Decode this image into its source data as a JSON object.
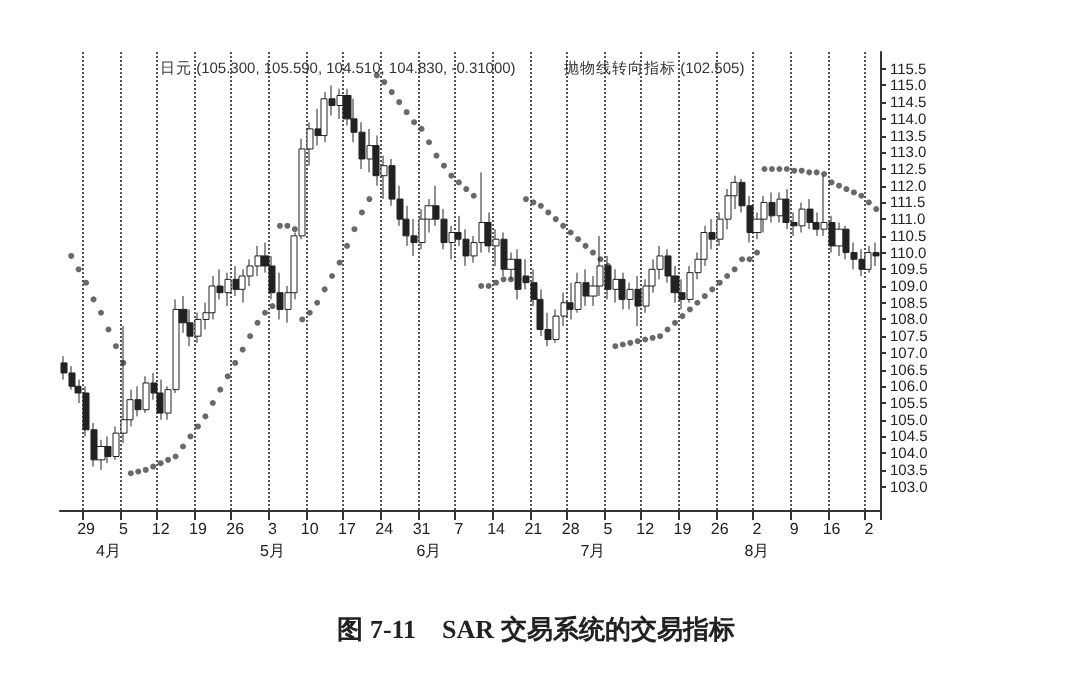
{
  "chart_data": {
    "type": "candlestick",
    "title": "图 7-11　SAR 交易系统的交易指标",
    "annotations": [
      "日元 (105.300, 105.590, 104.510, 104.830, -0.31000)",
      "抛物线转向指标 (102.505)"
    ],
    "categories": [
      null,
      null,
      null,
      "29",
      null,
      null,
      "\n4月",
      null,
      "5",
      null,
      null,
      null,
      null,
      "12",
      null,
      null,
      null,
      null,
      "19",
      null,
      null,
      null,
      null,
      "26",
      null,
      null,
      null,
      null,
      "3\n5月",
      null,
      null,
      null,
      null,
      "10",
      null,
      null,
      null,
      null,
      "17",
      null,
      null,
      null,
      null,
      "24",
      null,
      null,
      null,
      null,
      "31",
      "\n6月",
      null,
      null,
      null,
      "7",
      null,
      null,
      null,
      null,
      "14",
      null,
      null,
      null,
      null,
      "21",
      null,
      null,
      null,
      null,
      "28",
      null,
      null,
      "\n7月",
      null,
      "5",
      null,
      null,
      null,
      null,
      "12",
      null,
      null,
      null,
      null,
      "19",
      null,
      null,
      null,
      null,
      "26",
      null,
      null,
      null,
      null,
      "2\n8月",
      null,
      null,
      null,
      null,
      "9",
      null,
      null,
      null,
      null,
      "16",
      null,
      null,
      null,
      null,
      "2",
      null
    ],
    "color": "#222222",
    "ohlc": [
      [
        106.7,
        106.9,
        106.2,
        106.4
      ],
      [
        106.4,
        106.6,
        105.9,
        106.0
      ],
      [
        106.0,
        106.2,
        105.5,
        105.8
      ],
      [
        105.8,
        106.0,
        104.5,
        104.7
      ],
      [
        104.7,
        104.9,
        103.6,
        103.8
      ],
      [
        103.8,
        104.4,
        103.5,
        104.2
      ],
      [
        104.2,
        104.5,
        103.7,
        103.9
      ],
      [
        103.9,
        104.8,
        103.8,
        104.6
      ],
      [
        104.6,
        107.8,
        104.3,
        105.0
      ],
      [
        105.0,
        105.9,
        104.8,
        105.6
      ],
      [
        105.6,
        106.0,
        105.1,
        105.3
      ],
      [
        105.3,
        106.3,
        105.2,
        106.1
      ],
      [
        106.1,
        106.4,
        105.6,
        105.8
      ],
      [
        105.8,
        106.2,
        105.0,
        105.2
      ],
      [
        105.2,
        106.0,
        105.0,
        105.9
      ],
      [
        105.9,
        108.6,
        105.8,
        108.3
      ],
      [
        108.3,
        108.7,
        107.6,
        107.9
      ],
      [
        107.9,
        108.3,
        107.2,
        107.5
      ],
      [
        107.5,
        108.2,
        107.3,
        108.0
      ],
      [
        108.0,
        108.5,
        107.7,
        108.2
      ],
      [
        108.2,
        109.3,
        108.0,
        109.0
      ],
      [
        109.0,
        109.5,
        108.6,
        108.8
      ],
      [
        108.8,
        109.4,
        108.4,
        109.2
      ],
      [
        109.2,
        109.6,
        108.7,
        108.9
      ],
      [
        108.9,
        109.5,
        108.5,
        109.3
      ],
      [
        109.3,
        109.8,
        109.0,
        109.6
      ],
      [
        109.6,
        110.2,
        109.3,
        109.9
      ],
      [
        109.9,
        110.3,
        109.4,
        109.6
      ],
      [
        109.6,
        109.9,
        108.6,
        108.8
      ],
      [
        108.8,
        109.4,
        108.0,
        108.3
      ],
      [
        108.3,
        109.0,
        107.9,
        108.8
      ],
      [
        108.8,
        110.6,
        108.6,
        110.5
      ],
      [
        110.5,
        113.4,
        110.4,
        113.1
      ],
      [
        113.1,
        113.9,
        112.6,
        113.7
      ],
      [
        113.7,
        114.3,
        113.2,
        113.5
      ],
      [
        113.5,
        114.8,
        113.3,
        114.6
      ],
      [
        114.6,
        115.0,
        114.1,
        114.4
      ],
      [
        114.4,
        114.9,
        114.0,
        114.7
      ],
      [
        114.7,
        114.9,
        113.8,
        114.0
      ],
      [
        114.0,
        114.6,
        113.3,
        113.6
      ],
      [
        113.6,
        113.9,
        112.5,
        112.8
      ],
      [
        112.8,
        113.7,
        112.4,
        113.2
      ],
      [
        113.2,
        113.5,
        112.0,
        112.3
      ],
      [
        112.3,
        112.9,
        111.6,
        112.6
      ],
      [
        112.6,
        112.8,
        111.4,
        111.6
      ],
      [
        111.6,
        112.0,
        110.8,
        111.0
      ],
      [
        111.0,
        111.4,
        110.2,
        110.5
      ],
      [
        110.5,
        111.0,
        109.9,
        110.3
      ],
      [
        110.3,
        111.3,
        110.1,
        111.0
      ],
      [
        111.0,
        111.6,
        110.6,
        111.4
      ],
      [
        111.4,
        112.0,
        110.8,
        111.0
      ],
      [
        111.0,
        111.3,
        110.1,
        110.3
      ],
      [
        110.3,
        110.8,
        109.8,
        110.6
      ],
      [
        110.6,
        111.1,
        110.2,
        110.4
      ],
      [
        110.4,
        110.7,
        109.6,
        109.9
      ],
      [
        109.9,
        110.5,
        109.7,
        110.3
      ],
      [
        110.3,
        112.4,
        110.0,
        110.9
      ],
      [
        110.9,
        111.2,
        110.0,
        110.2
      ],
      [
        110.2,
        110.7,
        109.6,
        110.4
      ],
      [
        110.4,
        110.6,
        109.3,
        109.5
      ],
      [
        109.5,
        110.0,
        109.2,
        109.8
      ],
      [
        109.8,
        110.1,
        108.6,
        108.9
      ],
      [
        109.3,
        109.8,
        108.9,
        109.1
      ],
      [
        109.1,
        109.5,
        108.4,
        108.6
      ],
      [
        108.6,
        108.9,
        107.5,
        107.7
      ],
      [
        107.7,
        108.2,
        107.2,
        107.4
      ],
      [
        107.4,
        108.3,
        107.3,
        108.1
      ],
      [
        108.1,
        108.8,
        107.8,
        108.5
      ],
      [
        108.5,
        109.1,
        108.0,
        108.3
      ],
      [
        108.3,
        109.4,
        108.2,
        109.1
      ],
      [
        109.1,
        109.5,
        108.4,
        108.7
      ],
      [
        108.7,
        109.3,
        108.4,
        109.0
      ],
      [
        109.0,
        110.5,
        108.7,
        109.6
      ],
      [
        109.6,
        109.9,
        108.6,
        108.9
      ],
      [
        108.9,
        109.5,
        108.5,
        109.2
      ],
      [
        109.2,
        109.4,
        108.3,
        108.6
      ],
      [
        108.6,
        109.1,
        108.3,
        108.9
      ],
      [
        108.9,
        109.3,
        107.8,
        108.4
      ],
      [
        108.4,
        109.2,
        108.2,
        109.0
      ],
      [
        109.0,
        109.8,
        108.8,
        109.5
      ],
      [
        109.5,
        110.2,
        109.2,
        109.9
      ],
      [
        109.9,
        110.1,
        109.1,
        109.3
      ],
      [
        109.3,
        109.6,
        108.5,
        108.8
      ],
      [
        108.8,
        109.2,
        108.3,
        108.6
      ],
      [
        108.6,
        109.6,
        108.5,
        109.4
      ],
      [
        109.4,
        110.0,
        109.2,
        109.8
      ],
      [
        109.8,
        110.8,
        109.6,
        110.6
      ],
      [
        110.6,
        111.0,
        110.1,
        110.4
      ],
      [
        110.4,
        111.2,
        110.2,
        111.0
      ],
      [
        111.0,
        111.9,
        110.7,
        111.7
      ],
      [
        111.7,
        112.3,
        111.3,
        112.1
      ],
      [
        112.1,
        112.2,
        111.2,
        111.4
      ],
      [
        111.4,
        111.7,
        110.3,
        110.6
      ],
      [
        110.6,
        111.2,
        110.4,
        111.0
      ],
      [
        111.0,
        111.7,
        110.6,
        111.5
      ],
      [
        111.5,
        111.8,
        110.9,
        111.1
      ],
      [
        111.1,
        111.8,
        110.9,
        111.6
      ],
      [
        111.6,
        111.9,
        110.7,
        110.9
      ],
      [
        110.9,
        111.2,
        110.5,
        110.8
      ],
      [
        110.8,
        111.5,
        110.6,
        111.3
      ],
      [
        111.3,
        111.6,
        110.7,
        110.9
      ],
      [
        110.9,
        111.2,
        110.5,
        110.7
      ],
      [
        110.7,
        112.3,
        110.5,
        110.9
      ],
      [
        110.9,
        111.1,
        110.0,
        110.2
      ],
      [
        110.2,
        110.9,
        109.9,
        110.7
      ],
      [
        110.7,
        110.8,
        109.8,
        110.0
      ],
      [
        110.0,
        110.3,
        109.5,
        109.8
      ],
      [
        109.8,
        110.1,
        109.3,
        109.5
      ],
      [
        109.5,
        110.2,
        109.4,
        110.0
      ],
      [
        110.0,
        110.3,
        109.6,
        109.9
      ]
    ],
    "series": [
      {
        "type": "scatter",
        "color": "#444444",
        "values": [
          null,
          109.9,
          109.5,
          109.1,
          108.6,
          108.2,
          107.7,
          107.2,
          106.7,
          103.4,
          103.45,
          103.5,
          103.6,
          103.7,
          103.8,
          103.9,
          104.2,
          104.5,
          104.8,
          105.1,
          105.5,
          105.9,
          106.3,
          106.7,
          107.1,
          107.5,
          107.9,
          108.2,
          108.4,
          110.8,
          110.8,
          110.7,
          108.0,
          108.2,
          108.5,
          108.9,
          109.3,
          109.7,
          110.2,
          110.7,
          111.2,
          111.6,
          115.3,
          115.1,
          114.8,
          114.5,
          114.2,
          113.9,
          113.7,
          113.3,
          112.9,
          112.6,
          112.3,
          112.1,
          111.9,
          111.7,
          109.0,
          109.0,
          109.1,
          109.2,
          109.2,
          109.2,
          111.6,
          111.5,
          111.4,
          111.2,
          111.0,
          110.8,
          110.6,
          110.4,
          110.2,
          110.0,
          109.8,
          109.6,
          107.2,
          107.25,
          107.3,
          107.35,
          107.4,
          107.45,
          107.5,
          107.7,
          107.9,
          108.1,
          108.3,
          108.5,
          108.7,
          108.9,
          109.1,
          109.3,
          109.5,
          109.8,
          109.8,
          110.0,
          112.5,
          112.5,
          112.5,
          112.5,
          112.45,
          112.45,
          112.4,
          112.4,
          112.35,
          112.1,
          112.0,
          111.9,
          111.8,
          111.7,
          111.5,
          111.3
        ]
      }
    ],
    "ylim": [
      102.3,
      116.0
    ],
    "yticks": [
      {
        "value": 103.0,
        "label": "103.0"
      },
      {
        "value": 103.5,
        "label": "103.5"
      },
      {
        "value": 104.0,
        "label": "104.0"
      },
      {
        "value": 104.5,
        "label": "104.5"
      },
      {
        "value": 105.0,
        "label": "105.0"
      },
      {
        "value": 105.5,
        "label": "105.5"
      },
      {
        "value": 106.0,
        "label": "106.0"
      },
      {
        "value": 106.5,
        "label": "106.5"
      },
      {
        "value": 107.0,
        "label": "107.0"
      },
      {
        "value": 107.5,
        "label": "107.5"
      },
      {
        "value": 108.0,
        "label": "108.0"
      },
      {
        "value": 108.5,
        "label": "108.5"
      },
      {
        "value": 109.0,
        "label": "109.0"
      },
      {
        "value": 109.5,
        "label": "109.5"
      },
      {
        "value": 110.0,
        "label": "110.0"
      },
      {
        "value": 110.5,
        "label": "110.5"
      },
      {
        "value": 111.0,
        "label": "111.0"
      },
      {
        "value": 111.5,
        "label": "111.5"
      },
      {
        "value": 112.0,
        "label": "112.0"
      },
      {
        "value": 112.5,
        "label": "112.5"
      },
      {
        "value": 113.0,
        "label": "113.0"
      },
      {
        "value": 113.5,
        "label": "113.5"
      },
      {
        "value": 114.0,
        "label": "114.0"
      },
      {
        "value": 114.5,
        "label": "114.5"
      },
      {
        "value": 115.0,
        "label": "115.0"
      },
      {
        "value": 115.5,
        "label": "115.5"
      }
    ],
    "grid": "x",
    "marker": "circle"
  }
}
